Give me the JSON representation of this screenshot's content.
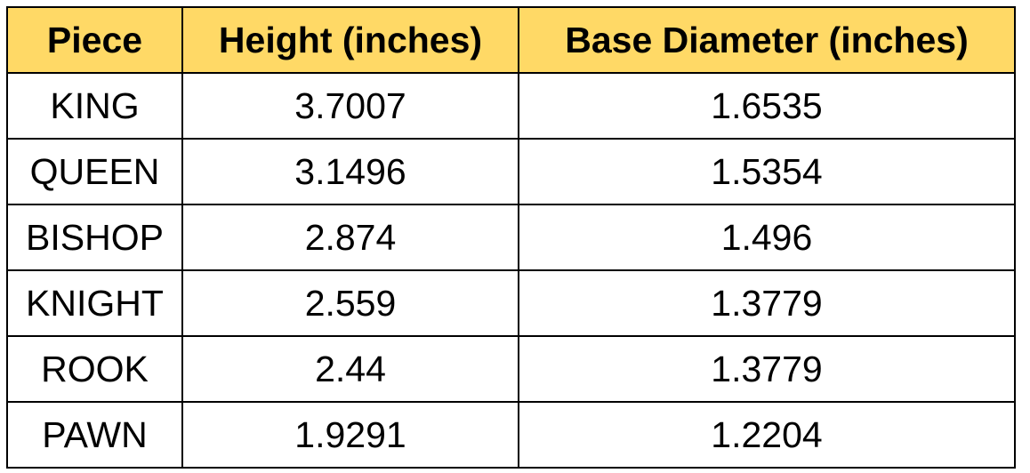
{
  "table": {
    "header": [
      "Piece",
      "Height (inches)",
      "Base Diameter (inches)"
    ],
    "rows": [
      [
        "KING",
        3.7007,
        1.6535
      ],
      [
        "QUEEN",
        3.1496,
        1.5354
      ],
      [
        "BISHOP",
        2.874,
        1.496
      ],
      [
        "KNIGHT",
        2.559,
        1.3779
      ],
      [
        "ROOK",
        2.44,
        1.3779
      ],
      [
        "PAWN",
        1.9291,
        1.2204
      ]
    ]
  }
}
